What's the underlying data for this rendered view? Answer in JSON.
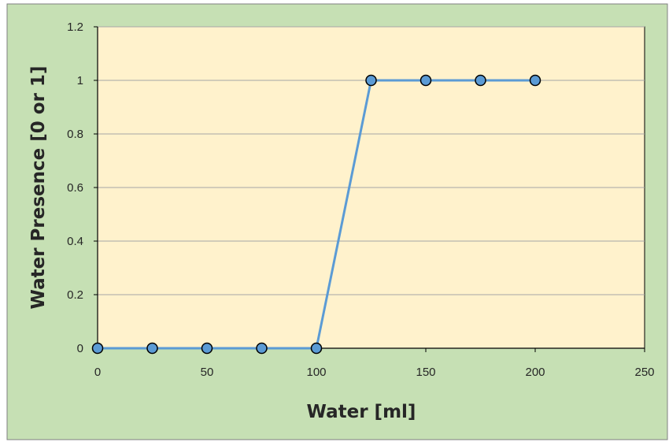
{
  "colors": {
    "chart_area": "#c6e0b4",
    "plot_area": "#fff2cc",
    "gridline": "#a6a6a6",
    "series_line": "#5b9bd5",
    "marker_fill": "#5b9bd5",
    "marker_edge": "#000000",
    "axis_text": "#262626"
  },
  "chart_data": {
    "type": "line",
    "title": "",
    "xlabel": "Water [ml]",
    "ylabel": "Water Presence [0 or 1]",
    "xlim": [
      0,
      250
    ],
    "ylim": [
      0,
      1.2
    ],
    "xticks": [
      0,
      50,
      100,
      150,
      200,
      250
    ],
    "xtick_labels": [
      "0",
      "50",
      "100",
      "150",
      "200",
      "250"
    ],
    "yticks": [
      0,
      0.2,
      0.4,
      0.6,
      0.8,
      1,
      1.2
    ],
    "ytick_labels": [
      "0",
      "0.2",
      "0.4",
      "0.6",
      "0.8",
      "1",
      "1.2"
    ],
    "grid": "horizontal",
    "legend": "none",
    "series": [
      {
        "x": [
          0,
          25,
          50,
          75,
          100,
          125,
          150,
          175,
          200
        ],
        "y": [
          0,
          0,
          0,
          0,
          0,
          1,
          1,
          1,
          1
        ],
        "marker": "circle"
      }
    ]
  }
}
